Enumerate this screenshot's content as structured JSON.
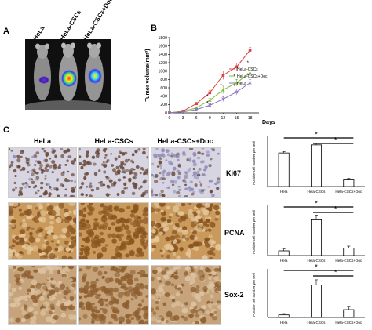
{
  "panel_a": {
    "letter": "A",
    "mouse_labels": [
      "HeLa",
      "HeLa-CSCs",
      "HeLa-CSCs+Doc"
    ]
  },
  "panel_b": {
    "letter": "B"
  },
  "panel_c": {
    "letter": "C",
    "column_headers": [
      "HeLa",
      "HeLa-CSCs",
      "HeLa-CSCs+Doc"
    ],
    "row_labels": [
      "Ki67",
      "PCNA",
      "Sox-2"
    ],
    "colors": {
      "ki67_background": "#d7d5e2",
      "ki67_nuclei": "#6a4a3a",
      "pcna_background": "#c99a5c",
      "pcna_nuclei": "#8a5420",
      "sox2_background": "#c6a37a",
      "sox2_nuclei": "#8e5f30"
    }
  },
  "chart_data": [
    {
      "type": "line",
      "title": "",
      "xlabel": "Days",
      "ylabel": "Tumor volume(mm³)",
      "x": [
        0,
        3,
        6,
        9,
        12,
        15,
        18
      ],
      "xlim": [
        0,
        20
      ],
      "ylim": [
        0,
        1800
      ],
      "yticks": [
        0,
        200,
        400,
        600,
        800,
        1000,
        1200,
        1400,
        1600,
        1800
      ],
      "legend_position": "top-right",
      "series": [
        {
          "name": "HeLa-CSCs",
          "color": "#d94040",
          "marker": "square",
          "values": [
            0,
            40,
            220,
            480,
            900,
            1100,
            1500
          ],
          "errors": [
            0,
            10,
            30,
            60,
            100,
            90,
            60
          ]
        },
        {
          "name": "HeLa-CSCs+Doc",
          "color": "#7dbb3b",
          "marker": "triangle",
          "values": [
            0,
            30,
            120,
            300,
            550,
            720,
            960
          ],
          "errors": [
            0,
            10,
            25,
            50,
            90,
            80,
            120
          ]
        },
        {
          "name": "HeLa",
          "color": "#8a6fc0",
          "marker": "x",
          "values": [
            0,
            20,
            80,
            180,
            330,
            500,
            720
          ],
          "errors": [
            0,
            8,
            20,
            40,
            60,
            70,
            80
          ]
        }
      ],
      "annotations": [
        "*",
        "*",
        "*",
        "*",
        "*",
        "*",
        "*",
        "*"
      ]
    },
    {
      "type": "bar",
      "row": "Ki67",
      "ylabel": "Positive cell number per well",
      "categories": [
        "Hela",
        "Hela-CSCs",
        "Hela-CSCs+Doc"
      ],
      "values": [
        50,
        62,
        11
      ],
      "errors": [
        2,
        3,
        1
      ],
      "ylim": [
        0,
        70
      ],
      "significance": [
        "*",
        "*"
      ]
    },
    {
      "type": "bar",
      "row": "PCNA",
      "ylabel": "Positive cell number per well",
      "categories": [
        "Hela",
        "Hela-CSCs",
        "Hela-CSCs+Doc"
      ],
      "values": [
        5,
        38,
        8
      ],
      "errors": [
        2,
        5,
        2
      ],
      "ylim": [
        0,
        50
      ],
      "significance": [
        "*",
        "*"
      ]
    },
    {
      "type": "bar",
      "row": "Sox-2",
      "ylabel": "Positive cell number per well",
      "categories": [
        "Hela",
        "Hela-CSCs",
        "Hela-CSCs+Doc"
      ],
      "values": [
        4,
        50,
        12
      ],
      "errors": [
        2,
        8,
        4
      ],
      "ylim": [
        0,
        70
      ],
      "significance": [
        "*",
        "*"
      ]
    }
  ]
}
